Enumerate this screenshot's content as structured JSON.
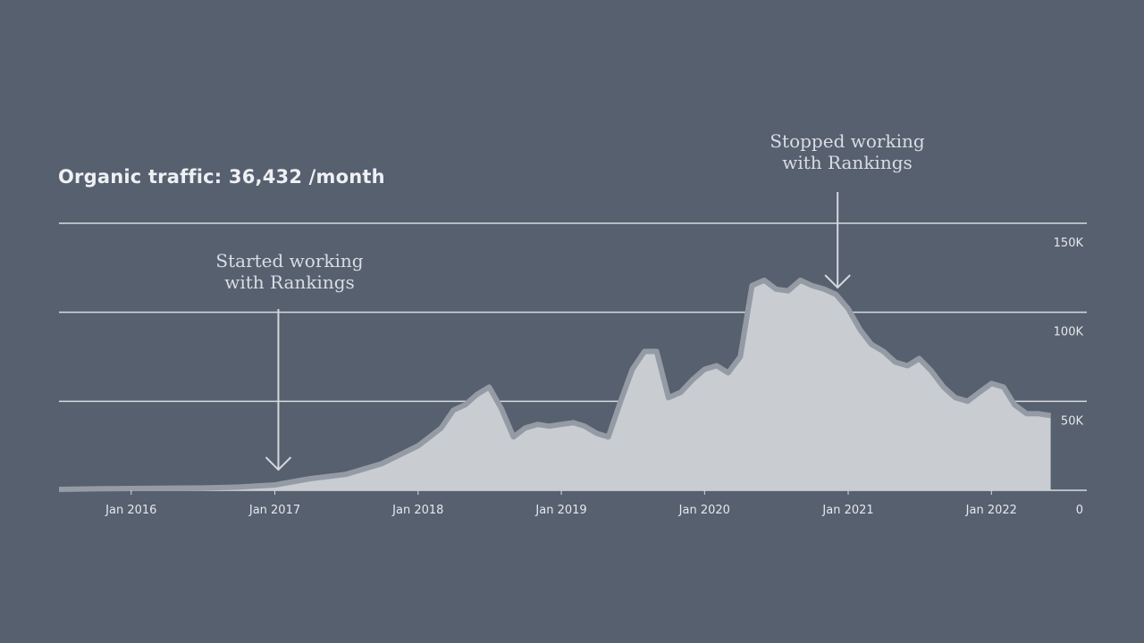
{
  "header": {
    "title": "Organic traffic: 36,432 /month"
  },
  "annotations": [
    {
      "line1": "Started working",
      "line2": "with Rankings",
      "at": "2017-01-10"
    },
    {
      "line1": "Stopped working",
      "line2": "with Rankings",
      "at": "2020-12-05"
    }
  ],
  "colors": {
    "background": "#56606f",
    "gridline": "#d8dbe0",
    "area_fill": "#c9ccd1",
    "area_edge": "#949ba4",
    "text": "#e6e8ec",
    "arrow": "#d3d7dc"
  },
  "chart_data": {
    "type": "area",
    "title": "Organic traffic: 36,432 /month",
    "xlabel": "",
    "ylabel": "",
    "x_tick_labels": [
      "Jan 2016",
      "Jan 2017",
      "Jan 2018",
      "Jan 2019",
      "Jan 2020",
      "Jan 2021",
      "Jan 2022"
    ],
    "y_tick_labels": [
      "0",
      "50K",
      "100K",
      "150K"
    ],
    "y_ticks": [
      0,
      50000,
      100000,
      150000
    ],
    "xlim": [
      "2015-07-01",
      "2022-09-01"
    ],
    "ylim": [
      0,
      150000
    ],
    "grid": true,
    "legend": "none",
    "series": [
      {
        "x": [
          "2015-07-01",
          "2015-10-01",
          "2016-01-01",
          "2016-04-01",
          "2016-07-01",
          "2016-10-01",
          "2017-01-01",
          "2017-04-01",
          "2017-07-01",
          "2017-10-01",
          "2018-01-01",
          "2018-03-01",
          "2018-04-01",
          "2018-05-01",
          "2018-06-01",
          "2018-07-01",
          "2018-08-01",
          "2018-09-01",
          "2018-10-01",
          "2018-11-01",
          "2018-12-01",
          "2019-01-01",
          "2019-02-01",
          "2019-03-01",
          "2019-04-01",
          "2019-05-01",
          "2019-06-01",
          "2019-07-01",
          "2019-08-01",
          "2019-09-01",
          "2019-10-01",
          "2019-11-01",
          "2019-12-01",
          "2020-01-01",
          "2020-02-01",
          "2020-03-01",
          "2020-04-01",
          "2020-05-01",
          "2020-06-01",
          "2020-07-01",
          "2020-08-01",
          "2020-09-01",
          "2020-10-01",
          "2020-11-01",
          "2020-12-01",
          "2021-01-01",
          "2021-02-01",
          "2021-03-01",
          "2021-04-01",
          "2021-05-01",
          "2021-06-01",
          "2021-07-01",
          "2021-08-01",
          "2021-09-01",
          "2021-10-01",
          "2021-11-01",
          "2021-12-01",
          "2022-01-01",
          "2022-02-01",
          "2022-03-01",
          "2022-04-01",
          "2022-05-01",
          "2022-06-01"
        ],
        "values": [
          500,
          800,
          1000,
          1200,
          1300,
          1800,
          3000,
          6500,
          9000,
          15000,
          25000,
          35000,
          45000,
          48000,
          54000,
          58000,
          46000,
          30000,
          35000,
          37000,
          36000,
          37000,
          38000,
          36000,
          32000,
          30000,
          50000,
          68000,
          78000,
          78000,
          52000,
          55000,
          62000,
          68000,
          70000,
          66000,
          75000,
          115000,
          118000,
          113000,
          112000,
          118000,
          115000,
          113000,
          110000,
          102000,
          90000,
          82000,
          78000,
          72000,
          70000,
          74000,
          67000,
          58000,
          52000,
          50000,
          55000,
          60000,
          58000,
          48000,
          43000,
          43000,
          42000
        ]
      }
    ]
  }
}
